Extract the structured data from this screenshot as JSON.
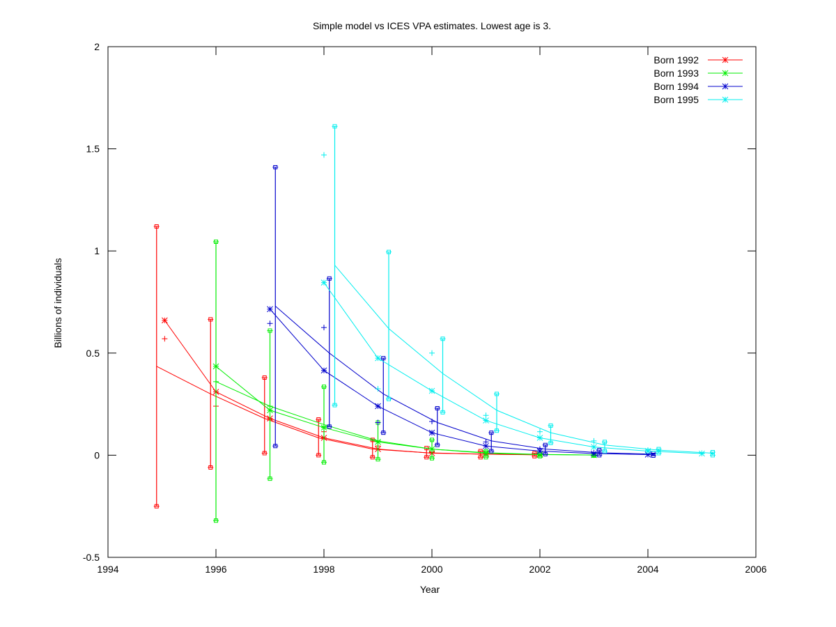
{
  "chart_data": {
    "type": "line",
    "title": "Simple model vs ICES VPA estimates. Lowest age is 3.",
    "xlabel": "Year",
    "ylabel": "Billions of individuals",
    "xlim": [
      1994,
      2006
    ],
    "ylim": [
      -0.5,
      2
    ],
    "xticks": [
      "1994",
      "1996",
      "1998",
      "2000",
      "2002",
      "2004",
      "2006"
    ],
    "yticks": [
      "-0.5",
      "0",
      "0.5",
      "1",
      "1.5",
      "2"
    ],
    "grid": false,
    "legend_position": "top-right",
    "series": [
      {
        "name": "Born 1992",
        "color": "#ff0000",
        "bar_offset": -0.1,
        "years": [
          1995,
          1996,
          1997,
          1998,
          1999,
          2000,
          2001,
          2002
        ],
        "estimate_star": [
          0.66,
          0.31,
          0.18,
          0.085,
          0.03,
          0.01,
          0.005,
          0.002
        ],
        "estimate_plus": [
          0.57,
          0.24,
          0.175,
          0.115,
          0.045,
          0.015,
          0.006,
          0.002
        ],
        "error_high": [
          1.12,
          0.665,
          0.38,
          0.175,
          0.075,
          0.035,
          0.02,
          0.01
        ],
        "error_low": [
          -0.25,
          -0.06,
          0.01,
          0.0,
          -0.01,
          -0.01,
          -0.01,
          -0.005
        ],
        "model": [
          0.435,
          0.3,
          0.18,
          0.085,
          0.03,
          0.012,
          0.005,
          0.002
        ]
      },
      {
        "name": "Born 1993",
        "color": "#00ee00",
        "bar_offset": 0.0,
        "years": [
          1996,
          1997,
          1998,
          1999,
          2000,
          2001,
          2002,
          2003
        ],
        "estimate_star": [
          0.435,
          0.22,
          0.135,
          0.065,
          0.03,
          0.01,
          0.003,
          0.001
        ],
        "estimate_plus": [
          0.36,
          0.24,
          0.14,
          0.07,
          0.03,
          0.012,
          0.004,
          0.001
        ],
        "error_high": [
          1.045,
          0.61,
          0.335,
          0.16,
          0.075,
          0.02,
          0.005,
          0.002
        ],
        "error_low": [
          -0.32,
          -0.115,
          -0.035,
          -0.02,
          -0.015,
          -0.01,
          -0.005,
          -0.002
        ],
        "model": [
          0.36,
          0.24,
          0.15,
          0.07,
          0.03,
          0.012,
          0.004,
          0.001
        ]
      },
      {
        "name": "Born 1994",
        "color": "#0000cc",
        "bar_offset": 0.1,
        "years": [
          1997,
          1998,
          1999,
          2000,
          2001,
          2002,
          2003,
          2004
        ],
        "estimate_star": [
          0.715,
          0.415,
          0.24,
          0.11,
          0.045,
          0.02,
          0.008,
          0.003
        ],
        "estimate_plus": [
          0.645,
          0.625,
          0.16,
          0.165,
          0.065,
          0.03,
          0.012,
          0.004
        ],
        "error_high": [
          1.41,
          0.865,
          0.475,
          0.23,
          0.11,
          0.05,
          0.025,
          0.01
        ],
        "error_low": [
          0.045,
          0.14,
          0.11,
          0.05,
          0.02,
          0.005,
          0.0,
          -0.002
        ],
        "model": [
          0.73,
          0.5,
          0.3,
          0.16,
          0.07,
          0.03,
          0.012,
          0.005
        ]
      },
      {
        "name": "Born 1995",
        "color": "#00eeee",
        "bar_offset": 0.2,
        "years": [
          1998,
          1999,
          2000,
          2001,
          2002,
          2003,
          2004,
          2005
        ],
        "estimate_star": [
          0.845,
          0.475,
          0.315,
          0.17,
          0.085,
          0.04,
          0.02,
          0.008
        ],
        "estimate_plus": [
          1.47,
          0.325,
          0.5,
          0.195,
          0.115,
          0.07,
          0.025,
          0.01
        ],
        "error_high": [
          1.61,
          0.995,
          0.57,
          0.3,
          0.145,
          0.065,
          0.03,
          0.015
        ],
        "error_low": [
          0.245,
          0.275,
          0.21,
          0.12,
          0.06,
          0.02,
          0.01,
          0.0
        ],
        "model": [
          0.93,
          0.62,
          0.4,
          0.22,
          0.11,
          0.05,
          0.025,
          0.01
        ]
      }
    ]
  }
}
